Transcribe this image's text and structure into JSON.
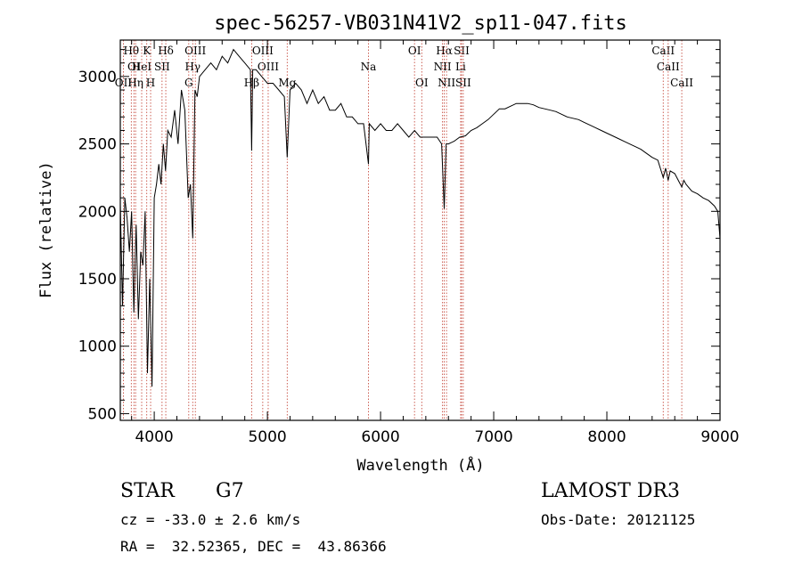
{
  "chart_data": {
    "type": "line",
    "title": "spec-56257-VB031N41V2_sp11-047.fits",
    "xlabel": "Wavelength (Å)",
    "ylabel": "Flux (relative)",
    "xlim": [
      3700,
      9000
    ],
    "ylim": [
      450,
      3270
    ],
    "xticks": [
      4000,
      5000,
      6000,
      7000,
      8000,
      9000
    ],
    "yticks": [
      500,
      1000,
      1500,
      2000,
      2500,
      3000
    ],
    "series": [
      {
        "name": "flux",
        "x": [
          3700,
          3720,
          3740,
          3760,
          3780,
          3800,
          3820,
          3840,
          3860,
          3880,
          3900,
          3920,
          3940,
          3960,
          3980,
          4000,
          4020,
          4040,
          4060,
          4080,
          4100,
          4120,
          4150,
          4180,
          4210,
          4240,
          4270,
          4300,
          4320,
          4340,
          4360,
          4380,
          4400,
          4450,
          4500,
          4550,
          4600,
          4650,
          4700,
          4750,
          4800,
          4850,
          4861,
          4870,
          4900,
          4950,
          5000,
          5050,
          5100,
          5150,
          5175,
          5200,
          5250,
          5300,
          5350,
          5400,
          5450,
          5500,
          5550,
          5600,
          5650,
          5700,
          5750,
          5800,
          5850,
          5893,
          5900,
          5950,
          6000,
          6050,
          6100,
          6150,
          6200,
          6250,
          6300,
          6350,
          6400,
          6450,
          6500,
          6540,
          6563,
          6580,
          6600,
          6650,
          6700,
          6750,
          6800,
          6850,
          6900,
          6950,
          7000,
          7050,
          7100,
          7150,
          7200,
          7250,
          7300,
          7350,
          7400,
          7450,
          7500,
          7550,
          7600,
          7650,
          7700,
          7750,
          7800,
          7850,
          7900,
          7950,
          8000,
          8050,
          8100,
          8150,
          8200,
          8250,
          8300,
          8350,
          8400,
          8450,
          8498,
          8520,
          8542,
          8560,
          8600,
          8662,
          8680,
          8700,
          8750,
          8800,
          8850,
          8900,
          8950,
          8980,
          9000
        ],
        "values": [
          2050,
          1300,
          2100,
          1950,
          1700,
          2000,
          1250,
          1900,
          1200,
          1700,
          1600,
          2000,
          800,
          1500,
          700,
          2100,
          2200,
          2350,
          2200,
          2500,
          2300,
          2600,
          2550,
          2750,
          2500,
          2900,
          2750,
          2100,
          2200,
          1800,
          2900,
          2850,
          3000,
          3050,
          3100,
          3050,
          3150,
          3100,
          3200,
          3150,
          3100,
          3050,
          2450,
          3050,
          3050,
          3000,
          2950,
          2950,
          2900,
          2850,
          2400,
          2900,
          2950,
          2900,
          2800,
          2900,
          2800,
          2850,
          2750,
          2750,
          2800,
          2700,
          2700,
          2650,
          2650,
          2350,
          2650,
          2600,
          2650,
          2600,
          2600,
          2650,
          2600,
          2550,
          2600,
          2550,
          2550,
          2550,
          2550,
          2500,
          2020,
          2500,
          2500,
          2520,
          2550,
          2560,
          2600,
          2620,
          2650,
          2680,
          2720,
          2760,
          2760,
          2780,
          2800,
          2800,
          2800,
          2790,
          2770,
          2760,
          2750,
          2740,
          2720,
          2700,
          2690,
          2680,
          2660,
          2640,
          2620,
          2600,
          2580,
          2560,
          2540,
          2520,
          2500,
          2480,
          2460,
          2430,
          2400,
          2380,
          2250,
          2320,
          2230,
          2300,
          2280,
          2180,
          2230,
          2200,
          2150,
          2130,
          2100,
          2080,
          2040,
          2000,
          1800
        ]
      }
    ],
    "lines": [
      {
        "label": "Hθ",
        "wave": 3797,
        "row": 0
      },
      {
        "label": "OI",
        "wave": 3820,
        "row": 1
      },
      {
        "label": "OII",
        "wave": 3727,
        "row": 2
      },
      {
        "label": "K",
        "wave": 3934,
        "row": 0
      },
      {
        "label": "HeI",
        "wave": 3889,
        "row": 1
      },
      {
        "label": "Hη",
        "wave": 3835,
        "row": 2
      },
      {
        "label": "Hδ",
        "wave": 4102,
        "row": 0
      },
      {
        "label": "SII",
        "wave": 4069,
        "row": 1
      },
      {
        "label": "H",
        "wave": 3968,
        "row": 2
      },
      {
        "label": "OIII",
        "wave": 4363,
        "row": 0
      },
      {
        "label": "Hγ",
        "wave": 4340,
        "row": 1
      },
      {
        "label": "G",
        "wave": 4305,
        "row": 2
      },
      {
        "label": "OIII",
        "wave": 4959,
        "row": 0
      },
      {
        "label": "OIII",
        "wave": 5007,
        "row": 1
      },
      {
        "label": "Hβ",
        "wave": 4861,
        "row": 2
      },
      {
        "label": "Mg",
        "wave": 5175,
        "row": 2
      },
      {
        "label": "Na",
        "wave": 5893,
        "row": 1
      },
      {
        "label": "OI",
        "wave": 6300,
        "row": 0
      },
      {
        "label": "OI",
        "wave": 6364,
        "row": 2
      },
      {
        "label": "Hα",
        "wave": 6563,
        "row": 0
      },
      {
        "label": "SII",
        "wave": 6716,
        "row": 0
      },
      {
        "label": "NII",
        "wave": 6548,
        "row": 1
      },
      {
        "label": "Li",
        "wave": 6708,
        "row": 1
      },
      {
        "label": "NII",
        "wave": 6583,
        "row": 2
      },
      {
        "label": "SII",
        "wave": 6731,
        "row": 2
      },
      {
        "label": "CaII",
        "wave": 8498,
        "row": 0
      },
      {
        "label": "CaII",
        "wave": 8542,
        "row": 1
      },
      {
        "label": "CaII",
        "wave": 8662,
        "row": 2
      }
    ]
  },
  "info": {
    "object_class": "STAR",
    "subclass": "G7",
    "survey": "LAMOST DR3",
    "redshift": "cz = -33.0 ± 2.6 km/s",
    "obs_date": "Obs-Date: 20121125",
    "coords": "RA =  32.52365, DEC =  43.86366"
  }
}
